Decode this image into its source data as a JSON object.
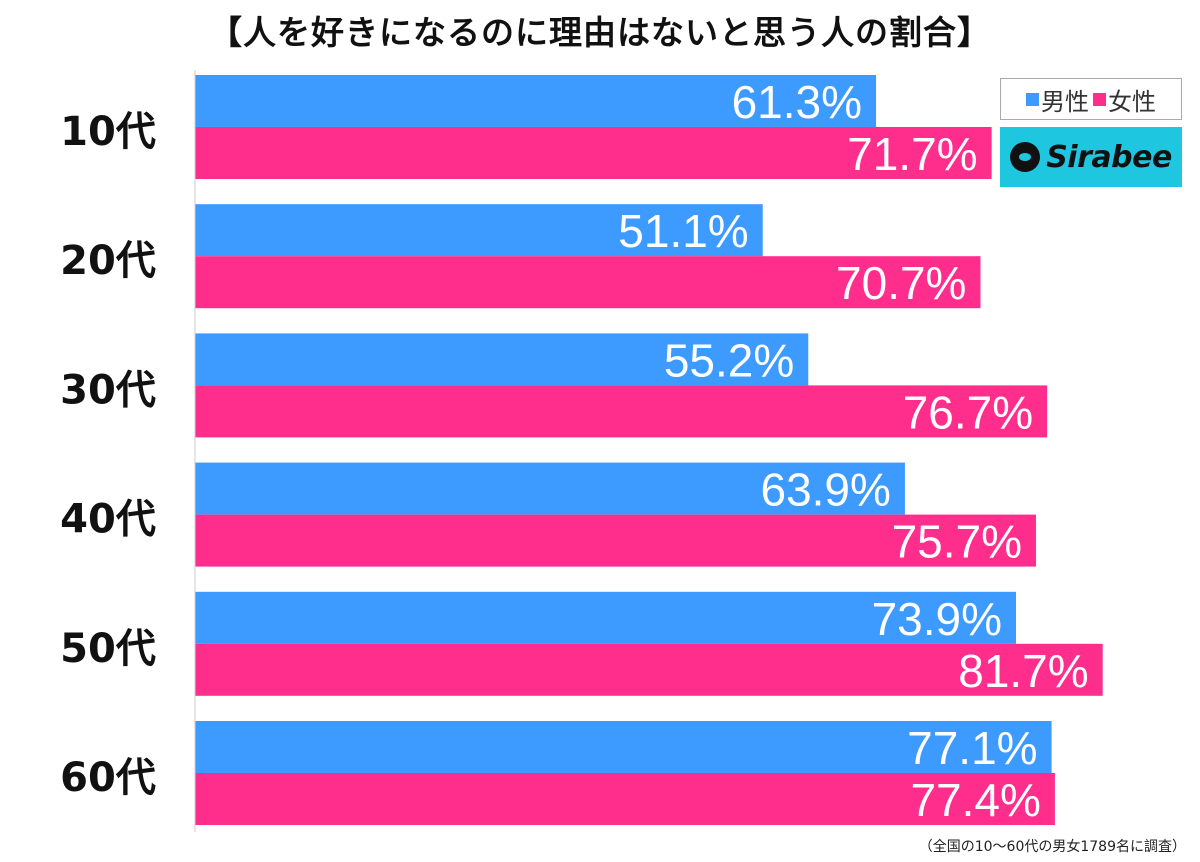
{
  "title": "【人を好きになるのに理由はないと思う人の割合】",
  "legend": {
    "male": "男性",
    "female": "女性"
  },
  "logo": {
    "text": "Sirabee"
  },
  "footnote": "（全国の10〜60代の男女1789名に調査）",
  "colors": {
    "male": "#3d9bff",
    "female": "#ff2e8c",
    "label_text": "#ffffff",
    "category_text": "#111111",
    "axis": "#cccccc"
  },
  "chart_data": {
    "type": "bar",
    "orientation": "horizontal",
    "title": "【人を好きになるのに理由はないと思う人の割合】",
    "categories": [
      "10代",
      "20代",
      "30代",
      "40代",
      "50代",
      "60代"
    ],
    "series": [
      {
        "name": "男性",
        "values": [
          61.3,
          51.1,
          55.2,
          63.9,
          73.9,
          77.1
        ]
      },
      {
        "name": "女性",
        "values": [
          71.7,
          70.7,
          76.7,
          75.7,
          81.7,
          77.4
        ]
      }
    ],
    "value_suffix": "%",
    "xlim": [
      0,
      100
    ],
    "grid": false,
    "legend_position": "top-right"
  }
}
